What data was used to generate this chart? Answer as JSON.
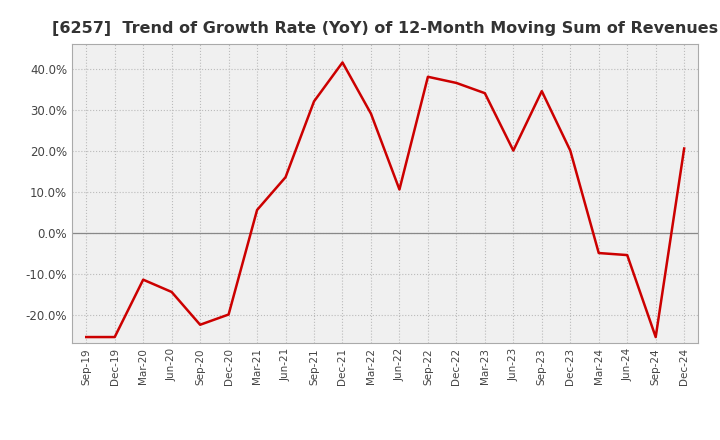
{
  "title": "[6257]  Trend of Growth Rate (YoY) of 12-Month Moving Sum of Revenues",
  "title_fontsize": 11.5,
  "line_color": "#cc0000",
  "background_color": "#ffffff",
  "plot_bg_color": "#f0f0f0",
  "grid_color": "#bbbbbb",
  "zero_line_color": "#888888",
  "ylim": [
    -0.27,
    0.46
  ],
  "yticks": [
    -0.2,
    -0.1,
    0.0,
    0.1,
    0.2,
    0.3,
    0.4
  ],
  "ytick_labels": [
    "-20.0%",
    "-10.0%",
    "0.0%",
    "10.0%",
    "20.0%",
    "30.0%",
    "40.0%"
  ],
  "x_labels": [
    "Sep-19",
    "Dec-19",
    "Mar-20",
    "Jun-20",
    "Sep-20",
    "Dec-20",
    "Mar-21",
    "Jun-21",
    "Sep-21",
    "Dec-21",
    "Mar-22",
    "Jun-22",
    "Sep-22",
    "Dec-22",
    "Mar-23",
    "Jun-23",
    "Sep-23",
    "Dec-23",
    "Mar-24",
    "Jun-24",
    "Sep-24",
    "Dec-24"
  ],
  "y_values": [
    -0.255,
    -0.255,
    -0.115,
    -0.145,
    -0.225,
    -0.2,
    0.055,
    0.135,
    0.32,
    0.415,
    0.29,
    0.105,
    0.38,
    0.365,
    0.34,
    0.2,
    0.345,
    0.2,
    -0.05,
    -0.055,
    -0.255,
    0.205
  ]
}
